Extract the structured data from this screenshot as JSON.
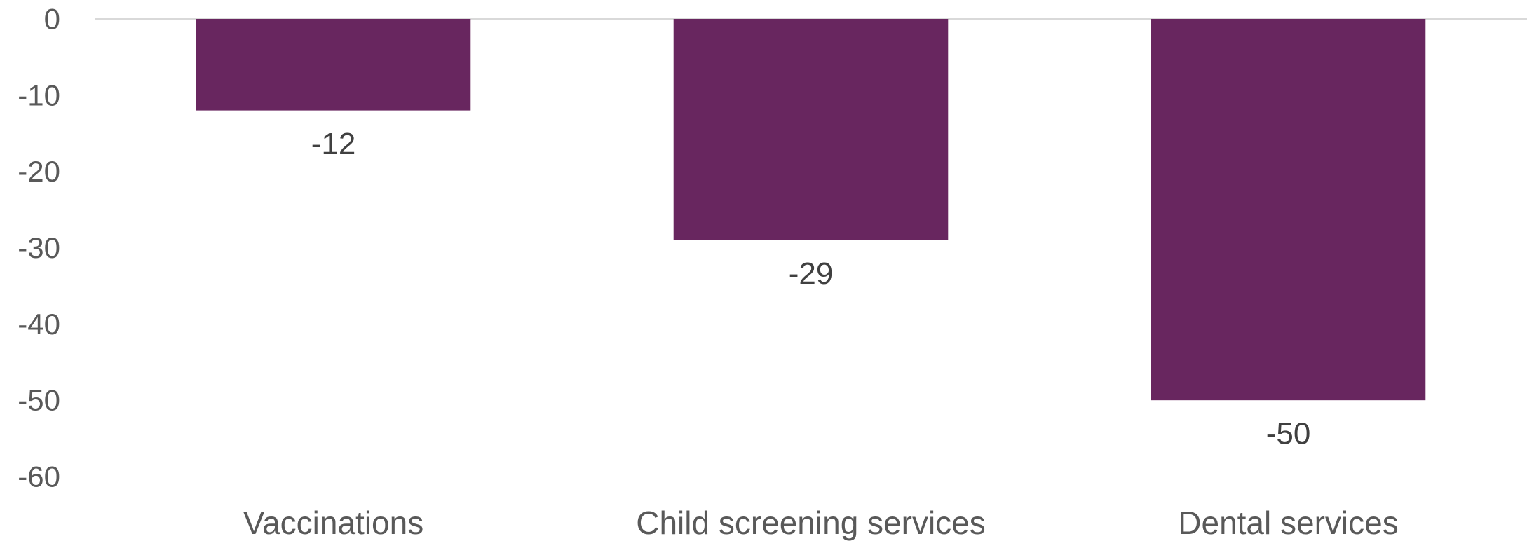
{
  "chart_data": {
    "type": "bar",
    "title": "",
    "xlabel": "",
    "ylabel": "",
    "categories": [
      "Vaccinations",
      "Child screening services",
      "Dental services"
    ],
    "values": [
      -12,
      -29,
      -50
    ],
    "data_labels": [
      "-12",
      "-29",
      "-50"
    ],
    "ylim": [
      -60,
      0
    ],
    "yticks": [
      0,
      -10,
      -20,
      -30,
      -40,
      -50,
      -60
    ],
    "ytick_labels": [
      "0",
      "-10",
      "-20",
      "-30",
      "-40",
      "-50",
      "-60"
    ],
    "grid": false,
    "legend": "none",
    "bar_color": "#68265F",
    "axis_line_color": "#D9D9D9"
  }
}
